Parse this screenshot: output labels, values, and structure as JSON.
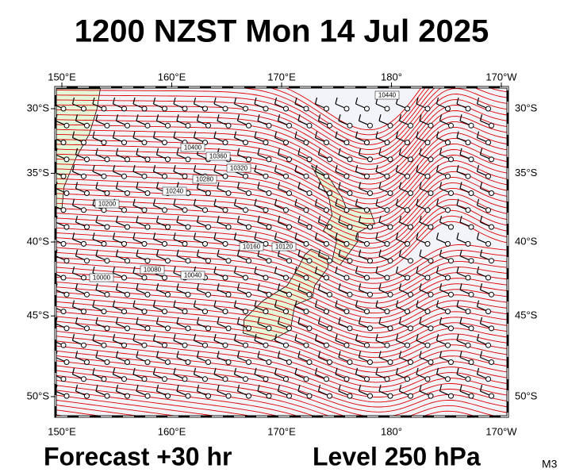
{
  "header": {
    "title": "1200 NZST Mon 14 Jul 2025"
  },
  "map": {
    "lon_ticks": [
      {
        "value": 150,
        "label": "150°E"
      },
      {
        "value": 160,
        "label": "160°E"
      },
      {
        "value": 170,
        "label": "170°E"
      },
      {
        "value": 180,
        "label": "180°"
      },
      {
        "value": 190,
        "label": "170°W"
      }
    ],
    "lat_ticks": [
      {
        "value": -30,
        "label": "30°S"
      },
      {
        "value": -35,
        "label": "35°S"
      },
      {
        "value": -40,
        "label": "40°S"
      },
      {
        "value": -45,
        "label": "45°S"
      },
      {
        "value": -50,
        "label": "50°S"
      }
    ],
    "contour_labels": [
      "10440",
      "10400",
      "10360",
      "10320",
      "10280",
      "10240",
      "10200",
      "10160",
      "10120",
      "10080",
      "10040",
      "10000"
    ]
  },
  "footer": {
    "forecast": "Forecast +30 hr",
    "level": "Level 250 hPa",
    "code": "M3"
  }
}
